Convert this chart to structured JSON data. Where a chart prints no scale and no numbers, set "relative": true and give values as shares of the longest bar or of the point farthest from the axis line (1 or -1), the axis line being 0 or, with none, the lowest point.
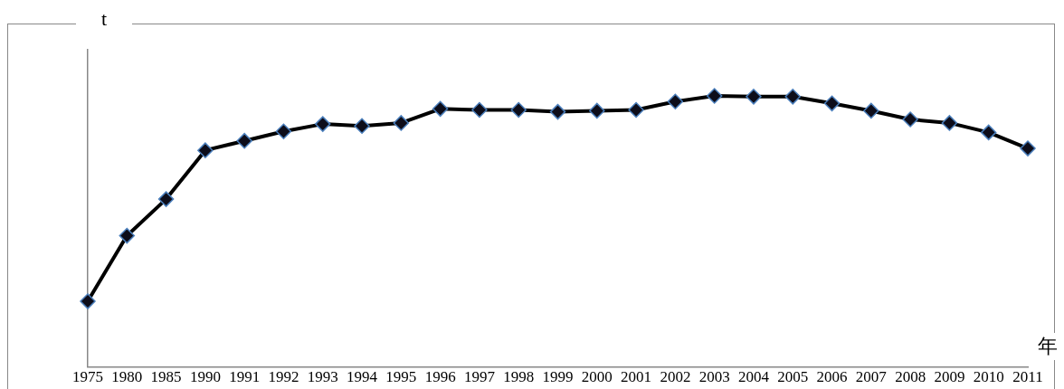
{
  "chart_data": {
    "type": "line",
    "ylabel": "t",
    "xlabel": "年",
    "relative": true,
    "marker": "diamond",
    "line_style": "solid",
    "grid": false,
    "legend": false,
    "categories": [
      "1975",
      "1980",
      "1985",
      "1990",
      "1991",
      "1992",
      "1993",
      "1994",
      "1995",
      "1996",
      "1997",
      "1998",
      "1999",
      "2000",
      "2001",
      "2002",
      "2003",
      "2004",
      "2005",
      "2006",
      "2007",
      "2008",
      "2009",
      "2010",
      "2011"
    ],
    "series": [
      {
        "color": "#000000",
        "values": [
          0.242,
          0.484,
          0.619,
          0.799,
          0.834,
          0.869,
          0.896,
          0.889,
          0.9,
          0.952,
          0.948,
          0.948,
          0.941,
          0.945,
          0.948,
          0.979,
          1,
          0.997,
          0.997,
          0.972,
          0.945,
          0.913,
          0.9,
          0.865,
          0.806
        ]
      }
    ]
  }
}
